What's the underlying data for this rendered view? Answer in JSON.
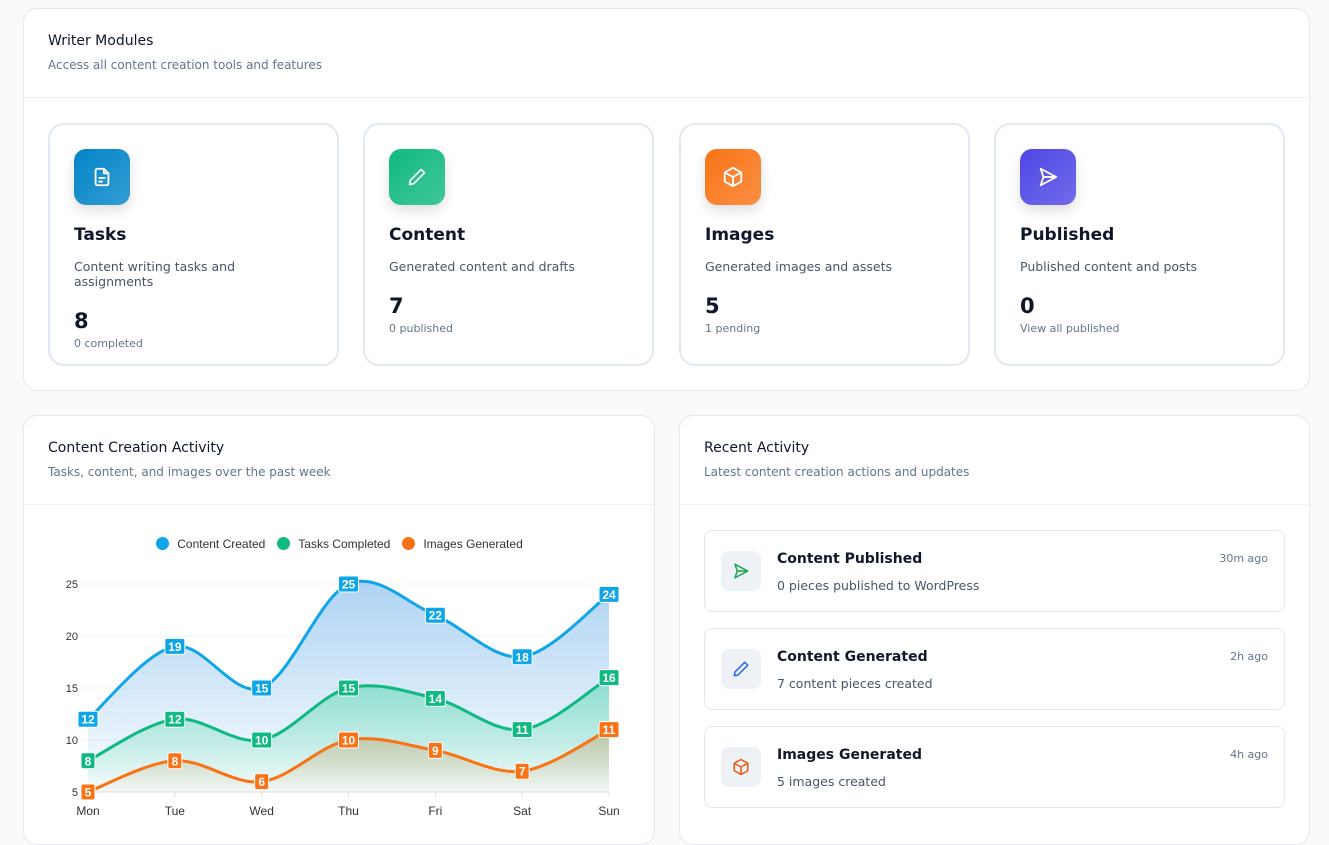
{
  "modules_section": {
    "title": "Writer Modules",
    "subtitle": "Access all content creation tools and features",
    "modules": [
      {
        "title": "Tasks",
        "description": "Content writing tasks and assignments",
        "count": "8",
        "footer": "0 completed",
        "icon": "document-icon",
        "color": "#0284c7"
      },
      {
        "title": "Content",
        "description": "Generated content and drafts",
        "count": "7",
        "footer": "0 published",
        "icon": "pencil-icon",
        "color": "#10b981"
      },
      {
        "title": "Images",
        "description": "Generated images and assets",
        "count": "5",
        "footer": "1 pending",
        "icon": "box-icon",
        "color": "#f97316"
      },
      {
        "title": "Published",
        "description": "Published content and posts",
        "count": "0",
        "footer": "View all published",
        "icon": "send-icon",
        "color": "#4f46e5"
      }
    ]
  },
  "activity_chart": {
    "title": "Content Creation Activity",
    "subtitle": "Tasks, content, and images over the past week"
  },
  "chart_data": {
    "type": "area",
    "categories": [
      "Mon",
      "Tue",
      "Wed",
      "Thu",
      "Fri",
      "Sat",
      "Sun"
    ],
    "ylim": [
      5,
      25
    ],
    "yticks": [
      5,
      10,
      15,
      20,
      25
    ],
    "grid": true,
    "legend": "top",
    "series": [
      {
        "name": "Content Created",
        "color": "#0ea5e9",
        "values": [
          12,
          19,
          15,
          25,
          22,
          18,
          24
        ]
      },
      {
        "name": "Tasks Completed",
        "color": "#10b981",
        "values": [
          8,
          12,
          10,
          15,
          14,
          11,
          16
        ]
      },
      {
        "name": "Images Generated",
        "color": "#f97316",
        "values": [
          5,
          8,
          6,
          10,
          9,
          7,
          11
        ]
      }
    ]
  },
  "recent": {
    "title": "Recent Activity",
    "subtitle": "Latest content creation actions and updates",
    "items": [
      {
        "title": "Content Published",
        "description": "0 pieces published to WordPress",
        "time": "30m ago",
        "icon": "send-icon",
        "color": "#16a34a"
      },
      {
        "title": "Content Generated",
        "description": "7 content pieces created",
        "time": "2h ago",
        "icon": "pencil-icon",
        "color": "#2563eb"
      },
      {
        "title": "Images Generated",
        "description": "5 images created",
        "time": "4h ago",
        "icon": "box-icon",
        "color": "#ea580c"
      }
    ]
  }
}
